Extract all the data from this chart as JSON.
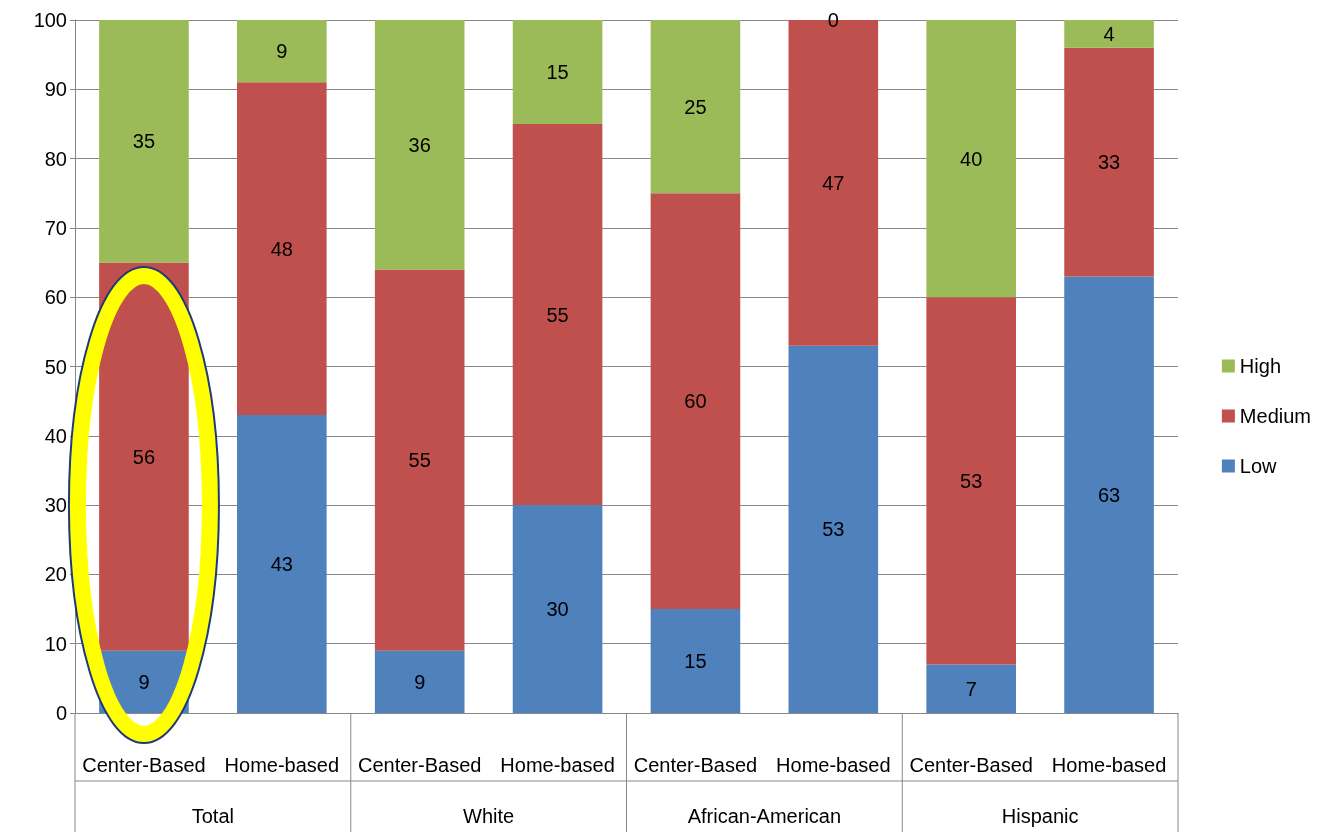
{
  "chart_data": {
    "type": "bar",
    "stacked": true,
    "categories": [
      "Center-Based",
      "Home-based",
      "Center-Based",
      "Home-based",
      "Center-Based",
      "Home-based",
      "Center-Based",
      "Home-based"
    ],
    "annotations": [
      "Total",
      "White",
      "African-American",
      "Hispanic"
    ],
    "series": [
      {
        "name": "Low",
        "color": "#4f81bd",
        "values": [
          9,
          43,
          9,
          30,
          15,
          53,
          7,
          63
        ]
      },
      {
        "name": "Medium",
        "color": "#c0504d",
        "values": [
          56,
          48,
          55,
          55,
          60,
          47,
          53,
          33
        ]
      },
      {
        "name": "High",
        "color": "#9bbb59",
        "values": [
          35,
          9,
          36,
          15,
          25,
          0,
          40,
          4
        ]
      }
    ],
    "ylim": [
      0,
      100
    ],
    "yticks": [
      0,
      10,
      20,
      30,
      40,
      50,
      60,
      70,
      80,
      90,
      100
    ],
    "grid": "y",
    "legend": "right",
    "data_labels": true
  }
}
